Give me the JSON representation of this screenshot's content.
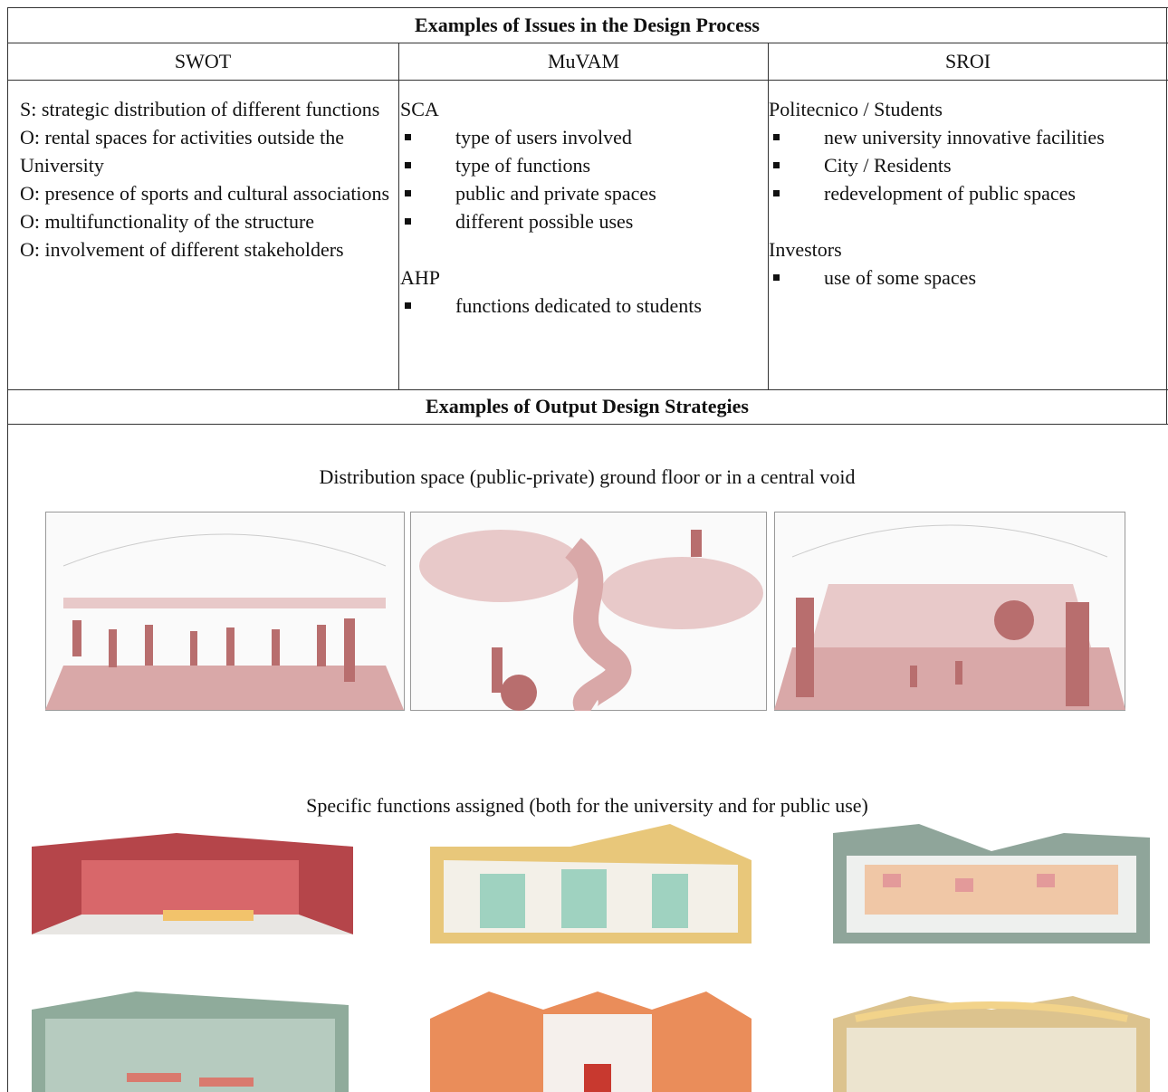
{
  "header": {
    "title": "Examples of Issues in the Design Process"
  },
  "columns": [
    "SWOT",
    "MuVAM",
    "SROI"
  ],
  "swot": [
    "S: strategic distribution of different functions",
    "O: rental spaces for activities outside the University",
    "O: presence of sports and cultural associations",
    "O: multifunctionality of the structure",
    "O: involvement of different stakeholders"
  ],
  "muvam": [
    {
      "heading": "SCA",
      "items": [
        "type of users involved",
        "type of functions",
        "public and private spaces",
        "different possible uses"
      ]
    },
    {
      "heading": "AHP",
      "items": [
        "functions dedicated to students"
      ]
    }
  ],
  "sroi": [
    {
      "heading": "Politecnico / Students",
      "items": [
        "new university innovative facilities",
        "City / Residents",
        "redevelopment of public spaces"
      ]
    },
    {
      "heading": "Investors",
      "items": [
        "use of some spaces"
      ]
    }
  ],
  "strategies": {
    "title": "Examples of Output Design Strategies",
    "captions": [
      "Distribution space (public-private) ground floor or in a central void",
      "Specific functions assigned (both for the university and for public use)"
    ]
  }
}
